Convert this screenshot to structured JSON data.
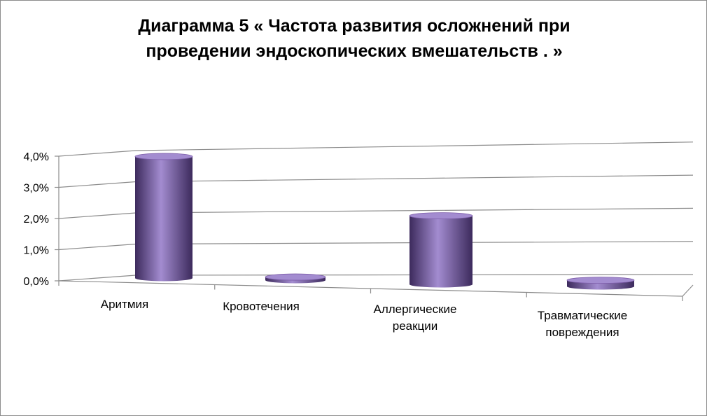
{
  "chart_data": {
    "type": "bar",
    "style": "3d-cylinder",
    "title_lines": [
      "Диаграмма  5 « Частота развития осложнений при",
      "проведении эндоскопических вмешательств . »"
    ],
    "categories": [
      [
        "Аритмия"
      ],
      [
        "Кровотечения"
      ],
      [
        "Аллергические",
        "реакции"
      ],
      [
        "Травматические",
        "повреждения"
      ]
    ],
    "values": [
      3.9,
      0.1,
      2.2,
      0.2
    ],
    "unit": "%",
    "yticks": [
      "0,0%",
      "1,0%",
      "2,0%",
      "3,0%",
      "4,0%"
    ],
    "ylim": [
      0,
      4
    ],
    "grid": true,
    "legend": "none",
    "colors": {
      "bar": "#7c5ca8",
      "bar_dark": "#3c2a5c",
      "bar_light": "#a38cd0",
      "grid": "#8c8c8c"
    }
  }
}
